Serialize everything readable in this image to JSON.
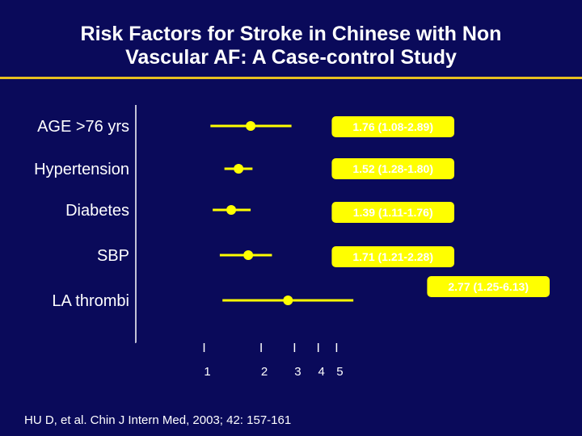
{
  "slide": {
    "title_line1": "Risk Factors for Stroke in Chinese with Non",
    "title_line2": "Vascular AF: A Case-control Study",
    "citation": "HU D, et al. Chin J Intern Med, 2003; 42: 157-161"
  },
  "colors": {
    "background": "#0a0a5a",
    "accent": "#ffff00",
    "rule": "#e8c020",
    "text": "#ffffff"
  },
  "chart_data": {
    "type": "forest",
    "categories": [
      "AGE >76 yrs",
      "Hypertension",
      "Diabetes",
      "SBP",
      "LA thrombi"
    ],
    "estimates": [
      1.76,
      1.52,
      1.39,
      1.71,
      2.77
    ],
    "ci_low": [
      1.08,
      1.28,
      1.11,
      1.21,
      1.25
    ],
    "ci_high": [
      2.89,
      1.8,
      1.76,
      2.28,
      6.13
    ],
    "labels": [
      "1.76 (1.08-2.89)",
      "1.52 (1.28-1.80)",
      "1.39 (1.11-1.76)",
      "1.71 (1.21-2.28)",
      "2.77 (1.25-6.13)"
    ],
    "x_ticks": [
      "1",
      "2",
      "3",
      "4",
      "5"
    ],
    "x_scale": "log",
    "xlim": [
      0.4,
      6.13
    ],
    "grid": false
  }
}
